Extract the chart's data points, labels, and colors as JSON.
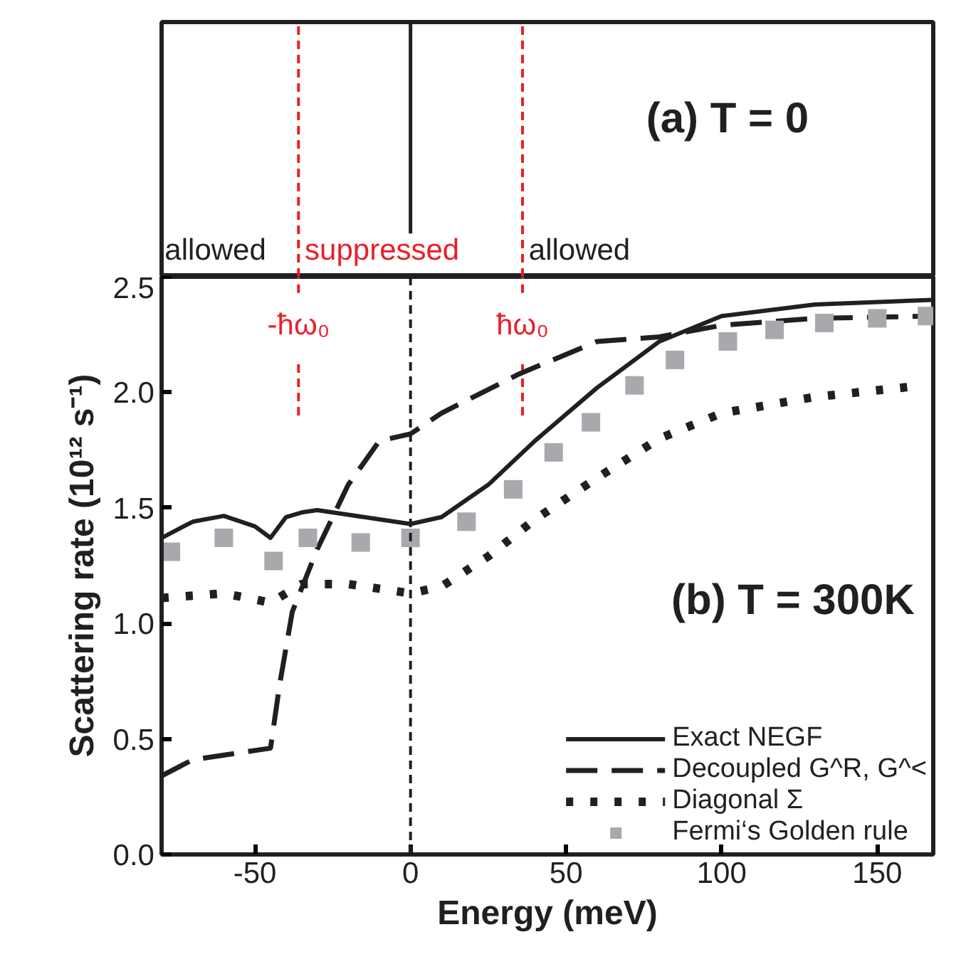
{
  "chart_data": [
    {
      "type": "other",
      "title": "(a) T = 0",
      "annotations": [
        "allowed",
        "suppressed",
        "allowed"
      ]
    },
    {
      "type": "line",
      "xlabel": "Energy (meV)",
      "ylabel": "Scattering rate (10¹² s⁻¹)",
      "annotations": [
        "(b) T = 300K"
      ],
      "xlim": [
        -80,
        168
      ],
      "ylim": [
        0,
        2.5
      ],
      "xticks": [
        -50,
        0,
        50,
        100,
        150
      ],
      "yticks": [
        {
          "value": 0,
          "label": "0.0"
        },
        0.5,
        {
          "value": 1,
          "label": "1.0"
        },
        1.5,
        {
          "value": 2,
          "label": "2.0"
        },
        2.5
      ],
      "grid": false,
      "legend": "bottom right",
      "ref_lines": [
        {
          "axis": "x",
          "value": 0,
          "label": null,
          "color": "#231f20",
          "line_style": "dashed"
        },
        {
          "axis": "x",
          "value": -36,
          "label": "-ħω₀",
          "color": "#e8202a",
          "line_style": "dashed"
        },
        {
          "axis": "x",
          "value": 36,
          "label": "ħω₀",
          "color": "#e8202a",
          "line_style": "dashed"
        }
      ],
      "series": [
        {
          "name": "Exact NEGF",
          "color": "#231f20",
          "line_style": "solid",
          "x": [
            -80,
            -70,
            -60,
            -50,
            -45,
            -40,
            -35,
            -30,
            -20,
            -10,
            0,
            10,
            25,
            40,
            60,
            80,
            100,
            130,
            168
          ],
          "values": [
            1.37,
            1.44,
            1.465,
            1.42,
            1.37,
            1.46,
            1.48,
            1.49,
            1.47,
            1.45,
            1.43,
            1.46,
            1.6,
            1.79,
            2.02,
            2.22,
            2.33,
            2.38,
            2.4
          ]
        },
        {
          "name": "Decoupled G^R, G^<",
          "color": "#231f20",
          "line_style": "dashed",
          "x": [
            -80,
            -70,
            -45,
            -42,
            -38,
            -30,
            -20,
            -10,
            0,
            10,
            35,
            60,
            80,
            100,
            130,
            168
          ],
          "values": [
            0.34,
            0.41,
            0.46,
            0.74,
            1.05,
            1.32,
            1.6,
            1.79,
            1.82,
            1.91,
            2.08,
            2.22,
            2.24,
            2.29,
            2.32,
            2.33
          ]
        },
        {
          "name": "Diagonal Σ",
          "color": "#231f20",
          "line_style": "dotted",
          "x": [
            -80,
            -60,
            -45,
            -35,
            -20,
            0,
            10,
            25,
            40,
            60,
            80,
            100,
            130,
            165
          ],
          "values": [
            1.11,
            1.13,
            1.09,
            1.17,
            1.17,
            1.13,
            1.16,
            1.29,
            1.45,
            1.63,
            1.8,
            1.91,
            1.98,
            2.03
          ]
        },
        {
          "name": "Fermi‘s Golden rule",
          "color": "#a7a9ac",
          "type": "scatter",
          "marker": "square",
          "x": [
            -77,
            -60,
            -44,
            -33,
            -16,
            0,
            18,
            33,
            46,
            58,
            72,
            85,
            102,
            117,
            133,
            150,
            166
          ],
          "values": [
            1.31,
            1.37,
            1.27,
            1.37,
            1.35,
            1.37,
            1.44,
            1.58,
            1.74,
            1.87,
            2.03,
            2.14,
            2.22,
            2.27,
            2.3,
            2.32,
            2.33
          ]
        }
      ]
    }
  ]
}
